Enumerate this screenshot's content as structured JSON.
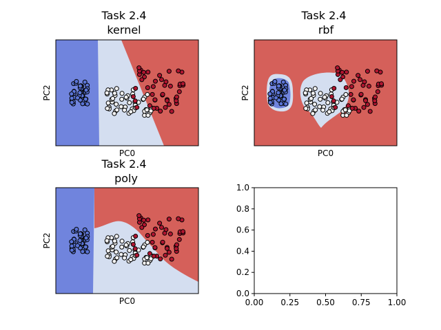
{
  "colors": {
    "class_blue_region": "#7084dd",
    "class_white_region": "#d4def0",
    "class_red_region": "#d5605a",
    "point_blue": "#5a74d6",
    "point_white": "#f2f2f2",
    "point_red": "#b01530",
    "edge": "#000000"
  },
  "chart_data": [
    {
      "type": "scatter",
      "subtype": "decision-regions",
      "title": "Task 2.4\nkernel",
      "xlabel": "PC0",
      "ylabel": "PC2",
      "xticks": false,
      "yticks": false,
      "grid": false
    },
    {
      "type": "scatter",
      "subtype": "decision-regions",
      "title": "Task 2.4\nrbf",
      "xlabel": "PC0",
      "ylabel": "PC2",
      "xticks": false,
      "yticks": false,
      "grid": false
    },
    {
      "type": "scatter",
      "subtype": "decision-regions",
      "title": "Task 2.4\npoly",
      "xlabel": "PC0",
      "ylabel": "PC2",
      "xticks": false,
      "yticks": false,
      "grid": false
    },
    {
      "type": "empty",
      "title": "",
      "xlim": [
        0,
        1
      ],
      "ylim": [
        0,
        1
      ],
      "xticks": [
        "0.00",
        "0.25",
        "0.50",
        "0.75",
        "1.00"
      ],
      "yticks": [
        "0.0",
        "0.2",
        "0.4",
        "0.6",
        "0.8",
        "1.0"
      ],
      "xtick_values": [
        0,
        0.25,
        0.5,
        0.75,
        1.0
      ],
      "ytick_values": [
        0,
        0.2,
        0.4,
        0.6,
        0.8,
        1.0
      ]
    }
  ]
}
